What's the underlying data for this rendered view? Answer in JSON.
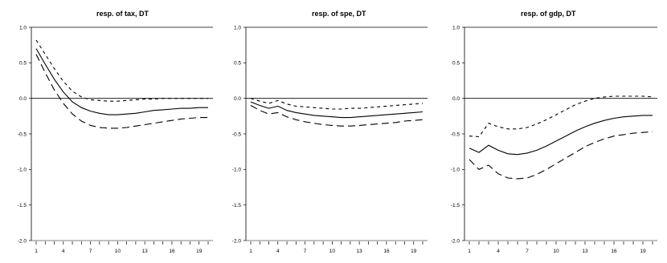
{
  "chart_data": [
    {
      "type": "line",
      "title": "resp. of tax, DT",
      "xlabel": "",
      "ylabel": "",
      "x": [
        1,
        2,
        3,
        4,
        5,
        6,
        7,
        8,
        9,
        10,
        11,
        12,
        13,
        14,
        15,
        16,
        17,
        18,
        19,
        20
      ],
      "xticks": [
        "1",
        "4",
        "7",
        "10",
        "13",
        "16",
        "19"
      ],
      "yticks": [
        "1.0",
        "0.5",
        "0.0",
        "-0.5",
        "-1.0",
        "-1.5",
        "-2.0"
      ],
      "ylim": [
        -2.0,
        1.0
      ],
      "grid": false,
      "zero_line": true,
      "series": [
        {
          "role": "lower",
          "dash": "long",
          "values": [
            0.62,
            0.36,
            0.12,
            -0.07,
            -0.22,
            -0.32,
            -0.38,
            -0.41,
            -0.42,
            -0.42,
            -0.41,
            -0.39,
            -0.37,
            -0.35,
            -0.33,
            -0.31,
            -0.29,
            -0.28,
            -0.27,
            -0.27
          ]
        },
        {
          "role": "point",
          "dash": "solid",
          "values": [
            0.7,
            0.48,
            0.27,
            0.09,
            -0.05,
            -0.13,
            -0.18,
            -0.21,
            -0.23,
            -0.23,
            -0.22,
            -0.21,
            -0.19,
            -0.17,
            -0.16,
            -0.15,
            -0.14,
            -0.14,
            -0.13,
            -0.13
          ]
        },
        {
          "role": "upper",
          "dash": "short",
          "values": [
            0.82,
            0.62,
            0.42,
            0.24,
            0.1,
            0.02,
            -0.02,
            -0.03,
            -0.04,
            -0.04,
            -0.03,
            -0.02,
            -0.01,
            -0.01,
            0.0,
            0.0,
            0.0,
            0.0,
            0.0,
            0.0
          ]
        }
      ]
    },
    {
      "type": "line",
      "title": "resp. of spe, DT",
      "xlabel": "",
      "ylabel": "",
      "x": [
        1,
        2,
        3,
        4,
        5,
        6,
        7,
        8,
        9,
        10,
        11,
        12,
        13,
        14,
        15,
        16,
        17,
        18,
        19,
        20
      ],
      "xticks": [
        "1",
        "4",
        "7",
        "10",
        "13",
        "16",
        "19"
      ],
      "yticks": [
        "1.0",
        "0.5",
        "0.0",
        "-0.5",
        "-1.0",
        "-1.5",
        "-2.0"
      ],
      "ylim": [
        -2.0,
        1.0
      ],
      "grid": false,
      "zero_line": true,
      "series": [
        {
          "role": "lower",
          "dash": "long",
          "values": [
            -0.1,
            -0.17,
            -0.22,
            -0.2,
            -0.26,
            -0.3,
            -0.33,
            -0.35,
            -0.37,
            -0.38,
            -0.39,
            -0.39,
            -0.38,
            -0.37,
            -0.36,
            -0.35,
            -0.34,
            -0.32,
            -0.31,
            -0.3
          ]
        },
        {
          "role": "point",
          "dash": "solid",
          "values": [
            -0.05,
            -0.1,
            -0.14,
            -0.11,
            -0.17,
            -0.2,
            -0.22,
            -0.24,
            -0.25,
            -0.26,
            -0.27,
            -0.27,
            -0.26,
            -0.25,
            -0.24,
            -0.23,
            -0.22,
            -0.21,
            -0.2,
            -0.19
          ]
        },
        {
          "role": "upper",
          "dash": "short",
          "values": [
            0.0,
            -0.04,
            -0.07,
            -0.03,
            -0.08,
            -0.11,
            -0.12,
            -0.13,
            -0.14,
            -0.15,
            -0.15,
            -0.14,
            -0.14,
            -0.13,
            -0.12,
            -0.11,
            -0.1,
            -0.09,
            -0.08,
            -0.07
          ]
        }
      ]
    },
    {
      "type": "line",
      "title": "resp. of gdp, DT",
      "xlabel": "",
      "ylabel": "",
      "x": [
        1,
        2,
        3,
        4,
        5,
        6,
        7,
        8,
        9,
        10,
        11,
        12,
        13,
        14,
        15,
        16,
        17,
        18,
        19,
        20
      ],
      "xticks": [
        "1",
        "4",
        "7",
        "10",
        "13",
        "16",
        "19"
      ],
      "yticks": [
        "1.0",
        "0.5",
        "0.0",
        "-0.5",
        "-1.0",
        "-1.5",
        "-2.0"
      ],
      "ylim": [
        -2.0,
        1.0
      ],
      "grid": false,
      "zero_line": true,
      "series": [
        {
          "role": "lower",
          "dash": "long",
          "values": [
            -0.86,
            -1.0,
            -0.94,
            -1.06,
            -1.12,
            -1.13,
            -1.12,
            -1.07,
            -1.0,
            -0.92,
            -0.84,
            -0.76,
            -0.68,
            -0.62,
            -0.57,
            -0.53,
            -0.51,
            -0.49,
            -0.48,
            -0.47
          ]
        },
        {
          "role": "point",
          "dash": "solid",
          "values": [
            -0.7,
            -0.76,
            -0.66,
            -0.73,
            -0.78,
            -0.79,
            -0.77,
            -0.73,
            -0.67,
            -0.6,
            -0.53,
            -0.46,
            -0.4,
            -0.35,
            -0.31,
            -0.28,
            -0.26,
            -0.25,
            -0.24,
            -0.24
          ]
        },
        {
          "role": "upper",
          "dash": "short",
          "values": [
            -0.53,
            -0.54,
            -0.35,
            -0.4,
            -0.43,
            -0.43,
            -0.41,
            -0.36,
            -0.3,
            -0.23,
            -0.16,
            -0.09,
            -0.04,
            0.0,
            0.02,
            0.03,
            0.03,
            0.03,
            0.03,
            0.02
          ]
        }
      ]
    }
  ]
}
